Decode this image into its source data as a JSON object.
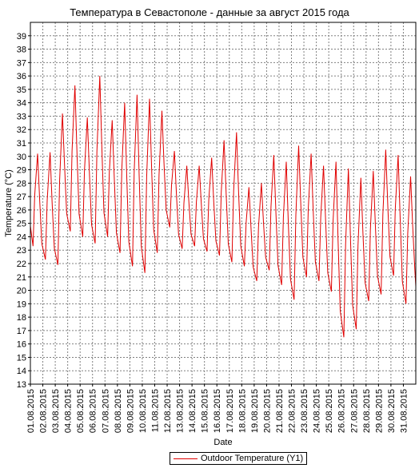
{
  "chart_data": {
    "type": "line",
    "title": "Температура в Севастополе - данные за август 2015 года",
    "xlabel": "Date",
    "ylabel": "Temperature (°C)",
    "ylim": [
      13,
      40
    ],
    "yticks": [
      13,
      14,
      15,
      16,
      17,
      18,
      19,
      20,
      21,
      22,
      23,
      24,
      25,
      26,
      27,
      28,
      29,
      30,
      31,
      32,
      33,
      34,
      35,
      36,
      37,
      38,
      39
    ],
    "xlim_days": [
      1,
      32
    ],
    "grid": true,
    "legend_position": "bottom-center",
    "x_tick_labels": [
      "01.08.2015",
      "02.08.2015",
      "03.08.2015",
      "04.08.2015",
      "05.08.2015",
      "06.08.2015",
      "07.08.2015",
      "08.08.2015",
      "09.08.2015",
      "10.08.2015",
      "11.08.2015",
      "12.08.2015",
      "13.08.2015",
      "14.08.2015",
      "15.08.2015",
      "16.08.2015",
      "17.08.2015",
      "18.08.2015",
      "19.08.2015",
      "20.08.2015",
      "21.08.2015",
      "22.08.2015",
      "23.08.2015",
      "24.08.2015",
      "25.08.2015",
      "26.08.2015",
      "27.08.2015",
      "28.08.2015",
      "29.08.2015",
      "30.08.2015",
      "31.08.2015"
    ],
    "series": [
      {
        "name": "Outdoor Temperature (Y1)",
        "color": "#e00000",
        "daily_max": [
          30.2,
          30.3,
          33.2,
          35.3,
          32.9,
          36.0,
          32.7,
          34.0,
          34.6,
          34.3,
          33.4,
          30.4,
          29.3,
          29.3,
          29.9,
          31.2,
          31.8,
          27.7,
          28.0,
          30.1,
          29.6,
          30.8,
          30.2,
          29.3,
          29.6,
          29.1,
          28.4,
          28.9,
          30.5,
          30.1,
          28.5
        ],
        "daily_min": [
          23.3,
          22.3,
          21.9,
          24.4,
          24.0,
          23.5,
          24.0,
          22.8,
          21.8,
          21.3,
          22.8,
          24.7,
          23.1,
          23.3,
          22.9,
          22.6,
          22.1,
          21.8,
          20.7,
          21.5,
          20.4,
          19.3,
          21.0,
          20.7,
          19.9,
          16.5,
          17.1,
          19.2,
          19.7,
          21.1,
          19.0
        ],
        "end_value": 20.3
      }
    ]
  }
}
